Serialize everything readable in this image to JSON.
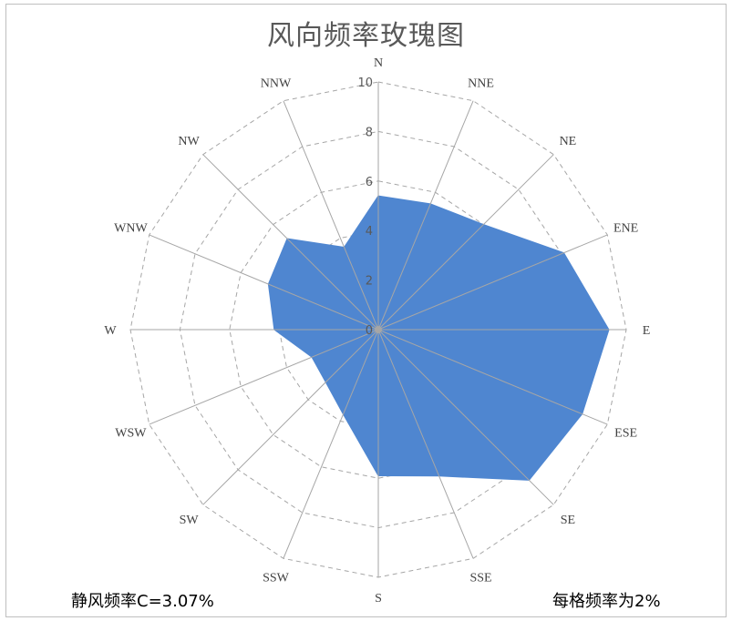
{
  "chart_data": {
    "type": "radar",
    "title": "风向频率玫瑰图",
    "directions": [
      "N",
      "NNE",
      "NE",
      "ENE",
      "E",
      "ESE",
      "SE",
      "SSE",
      "S",
      "SSW",
      "SW",
      "WSW",
      "W",
      "WNW",
      "NW",
      "NNW"
    ],
    "series": [
      {
        "values": [
          5.4,
          5.5,
          6.0,
          8.1,
          9.3,
          8.9,
          8.6,
          6.4,
          5.9,
          3.7,
          3.0,
          2.9,
          4.2,
          4.8,
          5.2,
          3.6
        ],
        "color": "#4f86d0"
      }
    ],
    "r_ticks": [
      "0",
      "2",
      "4",
      "6",
      "8",
      "10"
    ],
    "r_range": [
      0,
      10
    ],
    "grid": true,
    "legend": "none"
  },
  "notes": {
    "calm": "静风频率C=3.07%",
    "grid_step": "每格频率为2%"
  }
}
